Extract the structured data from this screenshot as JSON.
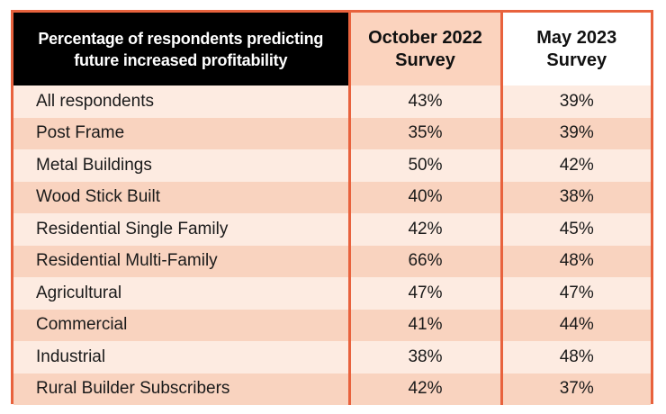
{
  "chart_data": {
    "type": "table",
    "title": "",
    "header": {
      "label": "Percentage of respondents predicting future increased profitability",
      "col1": "October 2022 Survey",
      "col2": "May 2023 Survey"
    },
    "rows": [
      {
        "label": "All respondents",
        "oct2022": "43%",
        "may2023": "39%"
      },
      {
        "label": "Post Frame",
        "oct2022": "35%",
        "may2023": "39%"
      },
      {
        "label": "Metal Buildings",
        "oct2022": "50%",
        "may2023": "42%"
      },
      {
        "label": "Wood Stick Built",
        "oct2022": "40%",
        "may2023": "38%"
      },
      {
        "label": "Residential Single Family",
        "oct2022": "42%",
        "may2023": "45%"
      },
      {
        "label": "Residential Multi-Family",
        "oct2022": "66%",
        "may2023": "48%"
      },
      {
        "label": "Agricultural",
        "oct2022": "47%",
        "may2023": "47%"
      },
      {
        "label": "Commercial",
        "oct2022": "41%",
        "may2023": "44%"
      },
      {
        "label": "Industrial",
        "oct2022": "38%",
        "may2023": "48%"
      },
      {
        "label": "Rural Builder Subscribers",
        "oct2022": "42%",
        "may2023": "37%"
      }
    ],
    "colors": {
      "border": "#e8623d",
      "header_label_bg": "#000000",
      "header_oct_bg": "#fbd3be",
      "header_may_bg": "#ffffff",
      "row_light": "#fdebe1",
      "row_dark": "#f9d3bf"
    }
  }
}
